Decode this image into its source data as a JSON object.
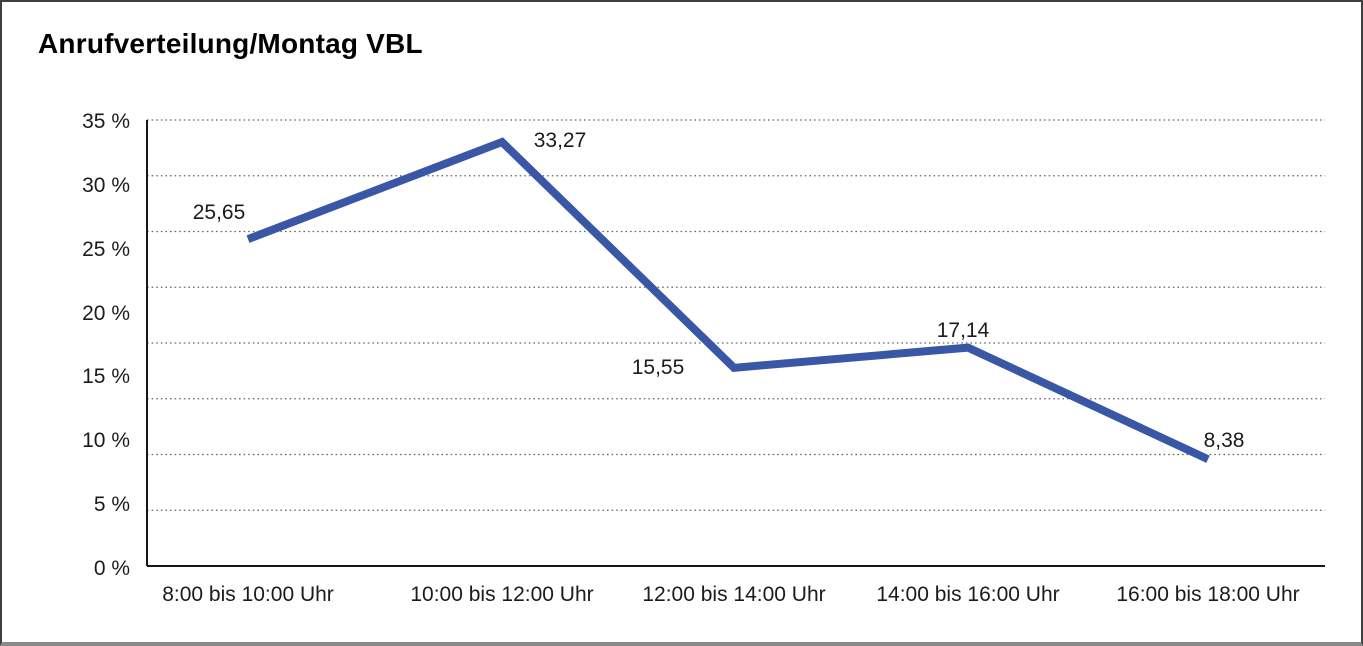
{
  "chart_data": {
    "type": "line",
    "title": "Anrufverteilung/Montag VBL",
    "categories": [
      "8:00 bis 10:00 Uhr",
      "10:00 bis 12:00 Uhr",
      "12:00 bis 14:00 Uhr",
      "14:00 bis 16:00 Uhr",
      "16:00 bis 18:00 Uhr"
    ],
    "values": [
      25.65,
      33.27,
      15.55,
      17.14,
      8.38
    ],
    "value_labels": [
      "25,65",
      "33,27",
      "15,55",
      "17,14",
      "8,38"
    ],
    "yticks": [
      "35 %",
      "30 %",
      "25 %",
      "20 %",
      "15 %",
      "10 %",
      "5 %",
      "0 %"
    ],
    "ylim": [
      0,
      35
    ],
    "xlabel": "",
    "ylabel": "",
    "grid": "horizontal-dotted",
    "legend": "none",
    "line_color": "#3A57A5",
    "axis_color": "#161616",
    "grid_color": "#666666",
    "text_color": "#1b1b1b"
  }
}
